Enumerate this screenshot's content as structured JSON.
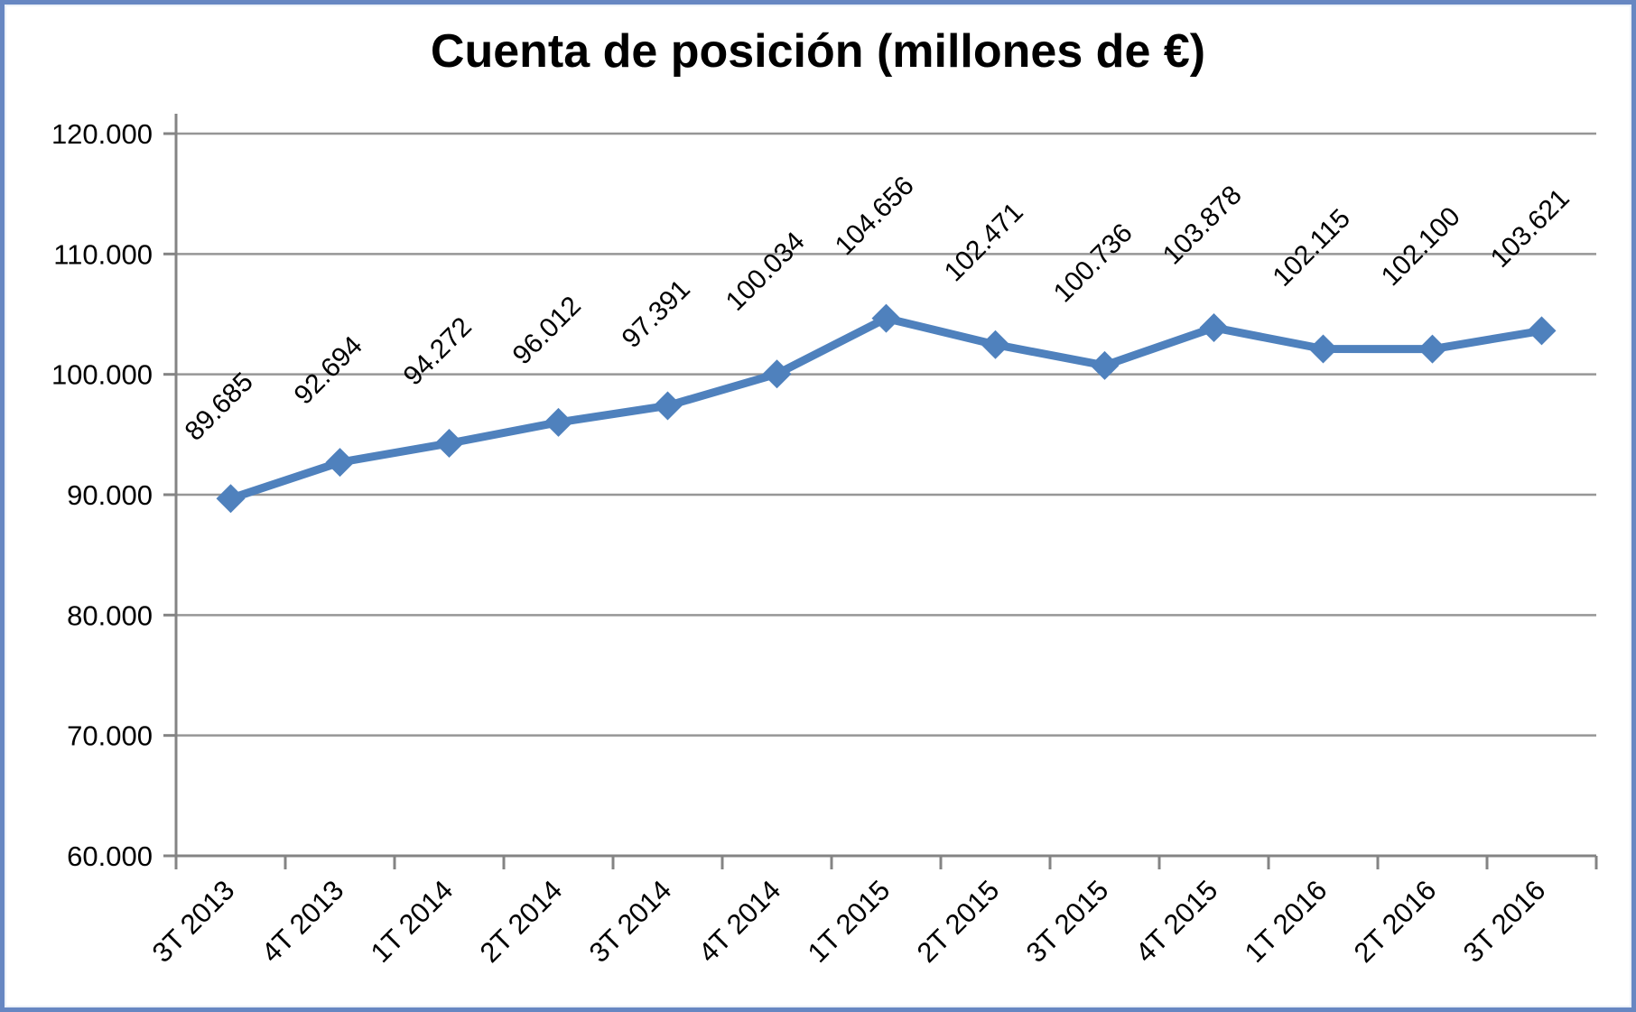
{
  "frame": {
    "border_color": "#6787c2",
    "background_color": "#ffffff"
  },
  "chart_data": {
    "type": "line",
    "title": "Cuenta de posición (millones de €)",
    "categories": [
      "3T 2013",
      "4T 2013",
      "1T 2014",
      "2T 2014",
      "3T 2014",
      "4T 2014",
      "1T 2015",
      "2T 2015",
      "3T 2015",
      "4T 2015",
      "1T 2016",
      "2T 2016",
      "3T 2016"
    ],
    "values": [
      89685,
      92694,
      94272,
      96012,
      97391,
      100034,
      104656,
      102471,
      100736,
      103878,
      102115,
      102100,
      103621
    ],
    "data_labels": [
      "89.685",
      "92.694",
      "94.272",
      "96.012",
      "97.391",
      "100.034",
      "104.656",
      "102.471",
      "100.736",
      "103.878",
      "102.115",
      "102.100",
      "103.621"
    ],
    "ylim": [
      60000,
      120000
    ],
    "y_tick_step": 10000,
    "y_tick_labels": [
      "60.000",
      "70.000",
      "80.000",
      "90.000",
      "100.000",
      "110.000",
      "120.000"
    ],
    "grid": true,
    "legend": "none",
    "data_label_rotation_deg": 45,
    "x_label_rotation_deg": 45,
    "series_color": "#4f81bd",
    "gridline_color": "#969696",
    "axis_color": "#848484",
    "text_color": "#000000"
  }
}
